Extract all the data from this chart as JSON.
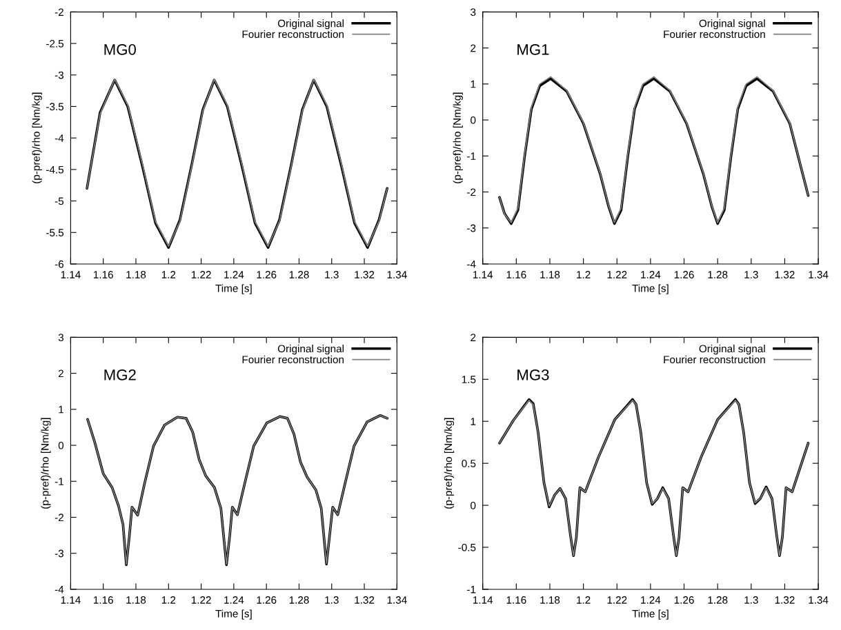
{
  "chart_data": [
    {
      "type": "line",
      "xlabel": "Time [s]",
      "ylabel": "(p-pref)/rho [Nm/kg]",
      "annotations": [
        "MG0"
      ],
      "legend": "top right",
      "grid": false,
      "line_style": "solid",
      "marker": "none",
      "xlim": [
        1.14,
        1.34
      ],
      "xticks": [
        1.14,
        1.16,
        1.18,
        1.2,
        1.22,
        1.24,
        1.26,
        1.28,
        1.3,
        1.32,
        1.34
      ],
      "ylim": [
        -6,
        -2
      ],
      "yticks": [
        -6,
        -5.5,
        -5,
        -4.5,
        -4,
        -3.5,
        -3,
        -2.5,
        -2
      ],
      "x": [
        1.15,
        1.158,
        1.167,
        1.175,
        1.184,
        1.192,
        1.2,
        1.207,
        1.214,
        1.221,
        1.228,
        1.236,
        1.245,
        1.253,
        1.261,
        1.268,
        1.275,
        1.282,
        1.289,
        1.297,
        1.306,
        1.314,
        1.322,
        1.329,
        1.334
      ],
      "series": [
        {
          "name": "Original signal",
          "color": "#000000",
          "values": [
            -4.8,
            -3.6,
            -3.08,
            -3.5,
            -4.45,
            -5.35,
            -5.74,
            -5.3,
            -4.45,
            -3.55,
            -3.08,
            -3.5,
            -4.45,
            -5.35,
            -5.74,
            -5.3,
            -4.45,
            -3.55,
            -3.08,
            -3.5,
            -4.45,
            -5.35,
            -5.74,
            -5.3,
            -4.8
          ]
        },
        {
          "name": "Fourier reconstruction",
          "color": "#808080",
          "values": [
            -4.8,
            -3.62,
            -3.07,
            -3.48,
            -4.42,
            -5.33,
            -5.72,
            -5.32,
            -4.47,
            -3.57,
            -3.07,
            -3.48,
            -4.42,
            -5.33,
            -5.72,
            -5.32,
            -4.47,
            -3.57,
            -3.07,
            -3.48,
            -4.42,
            -5.33,
            -5.72,
            -5.32,
            -4.8
          ]
        }
      ]
    },
    {
      "type": "line",
      "xlabel": "Time [s]",
      "ylabel": "(p-pref)/rho [Nm/kg]",
      "annotations": [
        "MG1"
      ],
      "legend": "top right",
      "grid": false,
      "line_style": "solid",
      "marker": "none",
      "xlim": [
        1.14,
        1.34
      ],
      "xticks": [
        1.14,
        1.16,
        1.18,
        1.2,
        1.22,
        1.24,
        1.26,
        1.28,
        1.3,
        1.32,
        1.34
      ],
      "ylim": [
        -4,
        3
      ],
      "yticks": [
        -4,
        -3,
        -2,
        -1,
        0,
        1,
        2,
        3
      ],
      "x": [
        1.15,
        1.153,
        1.157,
        1.161,
        1.165,
        1.169,
        1.174,
        1.1805,
        1.19,
        1.2,
        1.21,
        1.215,
        1.2185,
        1.2225,
        1.2265,
        1.2305,
        1.2355,
        1.242,
        1.2515,
        1.2615,
        1.2715,
        1.2765,
        1.28,
        1.284,
        1.288,
        1.292,
        1.297,
        1.3035,
        1.313,
        1.323,
        1.334
      ],
      "series": [
        {
          "name": "Original signal",
          "color": "#000000",
          "values": [
            -2.15,
            -2.6,
            -2.88,
            -2.5,
            -1.0,
            0.3,
            0.95,
            1.15,
            0.8,
            -0.1,
            -1.5,
            -2.4,
            -2.88,
            -2.5,
            -1.0,
            0.3,
            0.95,
            1.15,
            0.8,
            -0.1,
            -1.5,
            -2.4,
            -2.88,
            -2.5,
            -1.0,
            0.3,
            0.95,
            1.15,
            0.8,
            -0.1,
            -2.1
          ]
        },
        {
          "name": "Fourier reconstruction",
          "color": "#808080",
          "values": [
            -2.15,
            -2.62,
            -2.85,
            -2.45,
            -0.95,
            0.35,
            1.0,
            1.2,
            0.82,
            -0.08,
            -1.48,
            -2.38,
            -2.85,
            -2.45,
            -0.95,
            0.35,
            1.0,
            1.2,
            0.82,
            -0.08,
            -1.48,
            -2.38,
            -2.85,
            -2.45,
            -0.95,
            0.35,
            1.0,
            1.2,
            0.82,
            -0.08,
            -2.1
          ]
        }
      ]
    },
    {
      "type": "line",
      "xlabel": "Time [s]",
      "ylabel": "(p-pref)/rho [Nm/kg]",
      "annotations": [
        "MG2"
      ],
      "legend": "top right",
      "grid": false,
      "line_style": "solid",
      "marker": "none",
      "xlim": [
        1.14,
        1.34
      ],
      "xticks": [
        1.14,
        1.16,
        1.18,
        1.2,
        1.22,
        1.24,
        1.26,
        1.28,
        1.3,
        1.32,
        1.34
      ],
      "ylim": [
        -4,
        3
      ],
      "yticks": [
        -4,
        -3,
        -2,
        -1,
        0,
        1,
        2,
        3
      ],
      "x": [
        1.1504,
        1.1546,
        1.16,
        1.1654,
        1.1694,
        1.1721,
        1.1741,
        1.176,
        1.1776,
        1.1811,
        1.1854,
        1.1908,
        1.1975,
        1.2054,
        1.2108,
        1.2148,
        1.2188,
        1.2228,
        1.2281,
        1.2321,
        1.2355,
        1.2375,
        1.2391,
        1.2422,
        1.2468,
        1.2522,
        1.2602,
        1.2682,
        1.2729,
        1.2769,
        1.2809,
        1.2849,
        1.2903,
        1.2936,
        1.2968,
        1.2987,
        1.3006,
        1.3037,
        1.3083,
        1.3137,
        1.3217,
        1.3298,
        1.334
      ],
      "series": [
        {
          "name": "Original signal",
          "color": "#000000",
          "values": [
            0.72,
            0.11,
            -0.79,
            -1.17,
            -1.69,
            -2.2,
            -3.32,
            -2.52,
            -1.72,
            -1.94,
            -1.04,
            -0.02,
            0.56,
            0.78,
            0.75,
            0.37,
            -0.4,
            -0.85,
            -1.17,
            -1.75,
            -3.32,
            -2.52,
            -1.72,
            -1.93,
            -1.04,
            -0.02,
            0.62,
            0.8,
            0.75,
            0.31,
            -0.47,
            -0.88,
            -1.24,
            -1.75,
            -3.3,
            -2.52,
            -1.72,
            -1.93,
            -1.04,
            -0.02,
            0.65,
            0.83,
            0.75
          ]
        },
        {
          "name": "Fourier reconstruction",
          "color": "#808080",
          "values": [
            0.72,
            0.11,
            -0.79,
            -1.17,
            -1.69,
            -2.2,
            -3.3,
            -2.52,
            -1.72,
            -1.94,
            -1.04,
            -0.02,
            0.56,
            0.78,
            0.75,
            0.37,
            -0.4,
            -0.85,
            -1.17,
            -1.75,
            -3.3,
            -2.52,
            -1.72,
            -1.93,
            -1.04,
            -0.02,
            0.62,
            0.8,
            0.75,
            0.31,
            -0.47,
            -0.88,
            -1.24,
            -1.75,
            -3.28,
            -2.52,
            -1.72,
            -1.93,
            -1.04,
            -0.02,
            0.65,
            0.83,
            0.75
          ]
        }
      ]
    },
    {
      "type": "line",
      "xlabel": "Time [s]",
      "ylabel": "(p-pref)/rho [Nm/kg]",
      "annotations": [
        "MG3"
      ],
      "legend": "top right",
      "grid": false,
      "line_style": "solid",
      "marker": "none",
      "xlim": [
        1.14,
        1.34
      ],
      "xticks": [
        1.14,
        1.16,
        1.18,
        1.2,
        1.22,
        1.24,
        1.26,
        1.28,
        1.3,
        1.32,
        1.34
      ],
      "ylim": [
        -1,
        2
      ],
      "yticks": [
        -1,
        -0.5,
        0,
        0.5,
        1,
        1.5,
        2
      ],
      "x": [
        1.15,
        1.1582,
        1.1676,
        1.1701,
        1.173,
        1.1765,
        1.1796,
        1.1828,
        1.1861,
        1.1894,
        1.1923,
        1.1941,
        1.1958,
        1.1979,
        1.2011,
        1.2089,
        1.2187,
        1.2293,
        1.2314,
        1.2342,
        1.2377,
        1.241,
        1.2441,
        1.2473,
        1.2508,
        1.2537,
        1.2554,
        1.257,
        1.2592,
        1.2624,
        1.2701,
        1.28,
        1.2906,
        1.2927,
        1.2955,
        1.299,
        1.3023,
        1.3054,
        1.3089,
        1.3124,
        1.3152,
        1.3169,
        1.3186,
        1.3208,
        1.3244,
        1.334
      ],
      "series": [
        {
          "name": "Original signal",
          "color": "#000000",
          "values": [
            0.74,
            1.01,
            1.26,
            1.21,
            0.87,
            0.27,
            -0.02,
            0.12,
            0.2,
            0.08,
            -0.36,
            -0.6,
            -0.38,
            0.21,
            0.16,
            0.57,
            1.02,
            1.26,
            1.2,
            0.87,
            0.27,
            0.01,
            0.08,
            0.21,
            0.08,
            -0.36,
            -0.6,
            -0.38,
            0.21,
            0.16,
            0.57,
            1.02,
            1.26,
            1.2,
            0.87,
            0.27,
            0.02,
            0.08,
            0.22,
            0.08,
            -0.36,
            -0.6,
            -0.38,
            0.21,
            0.16,
            0.74
          ]
        },
        {
          "name": "Fourier reconstruction",
          "color": "#808080",
          "values": [
            0.74,
            1.01,
            1.25,
            1.2,
            0.87,
            0.27,
            -0.01,
            0.12,
            0.2,
            0.08,
            -0.36,
            -0.6,
            -0.38,
            0.21,
            0.16,
            0.57,
            1.02,
            1.25,
            1.2,
            0.87,
            0.27,
            0.02,
            0.08,
            0.2,
            0.08,
            -0.36,
            -0.6,
            -0.38,
            0.21,
            0.16,
            0.57,
            1.02,
            1.25,
            1.2,
            0.87,
            0.27,
            0.03,
            0.08,
            0.21,
            0.08,
            -0.36,
            -0.6,
            -0.38,
            0.21,
            0.16,
            0.74
          ]
        }
      ]
    }
  ]
}
